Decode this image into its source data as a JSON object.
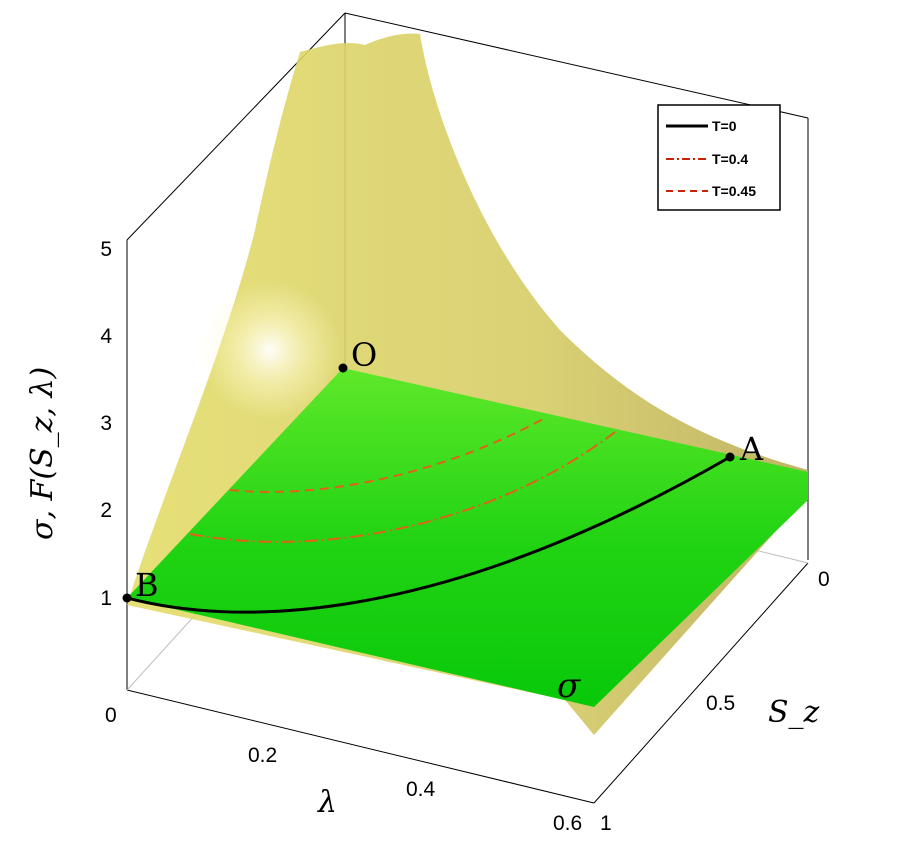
{
  "chart_data": {
    "type": "surface",
    "zlabel": "σ, F(S_z, λ)",
    "xlabel": "λ",
    "ylabel": "S_z",
    "xlim": [
      0,
      0.6
    ],
    "ylim": [
      0,
      1
    ],
    "zlim": [
      0,
      5
    ],
    "x_ticks": [
      "0",
      "0.2",
      "0.4",
      "0.6"
    ],
    "y_ticks": [
      "0",
      "0.5",
      "1"
    ],
    "z_ticks": [
      "1",
      "2",
      "3",
      "4",
      "5"
    ],
    "legend": {
      "position": "top-right",
      "entries": [
        {
          "label": "T=0",
          "style": "solid",
          "color": "#000000"
        },
        {
          "label": "T=0.4",
          "style": "dash-dot",
          "color": "#cc2200"
        },
        {
          "label": "T=0.45",
          "style": "dashed",
          "color": "#cc2200"
        }
      ]
    },
    "points": [
      {
        "label": "O",
        "x": 0,
        "y": 0,
        "z": 2.6
      },
      {
        "label": "A",
        "x": 0.6,
        "y": 0,
        "z": 1.5
      },
      {
        "label": "B",
        "x": 0,
        "y": 1,
        "z": 1.0
      }
    ],
    "plane_label": "σ",
    "colors": {
      "surface": "#e8e27a",
      "plane": "#1fd010",
      "curve_T0": "#000000",
      "curve_T": "#d4540f"
    }
  }
}
